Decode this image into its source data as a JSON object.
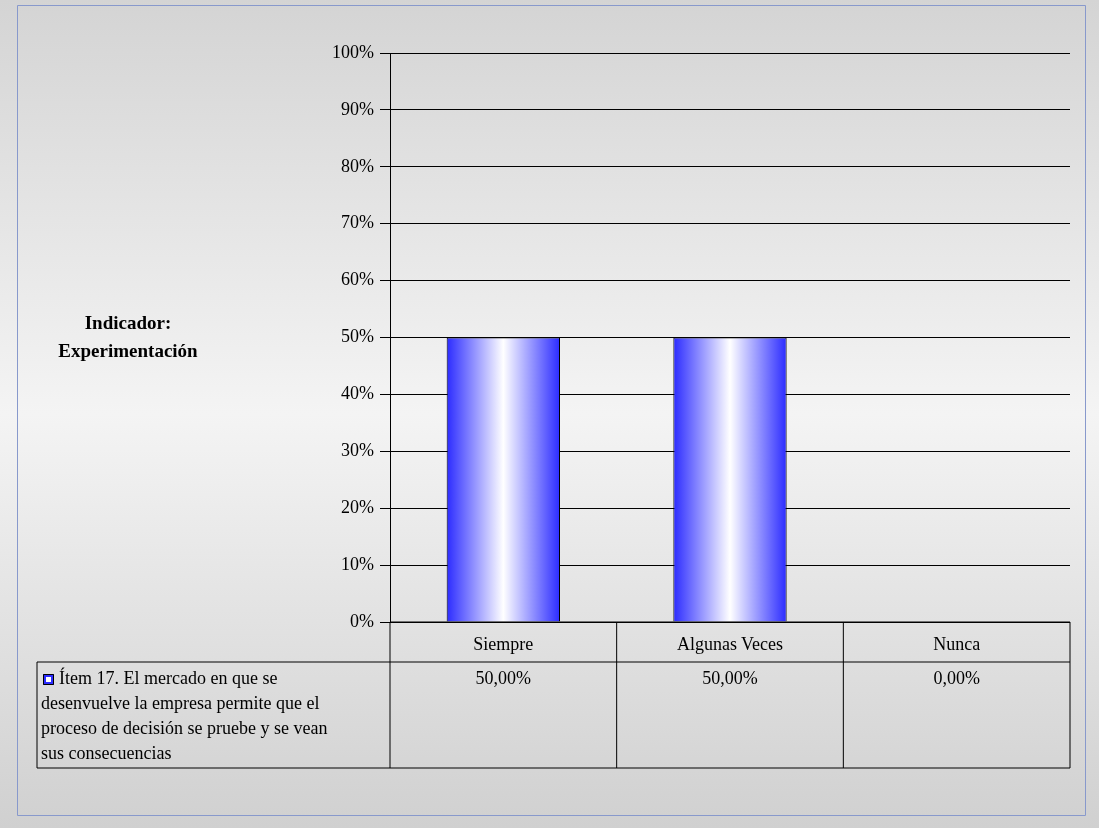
{
  "chart_data": {
    "type": "bar",
    "annotations": [
      "Indicador: Experimentación"
    ],
    "categories": [
      "Siempre",
      "Algunas Veces",
      "Nunca"
    ],
    "series": [
      {
        "name": "Ítem 17. El mercado en que se desenvuelve la empresa permite que el proceso de decisión se pruebe y se vean sus consecuencias",
        "color": "#2b2bff",
        "values": [
          50,
          50,
          0
        ],
        "value_labels": [
          "50,00%",
          "50,00%",
          "0,00%"
        ]
      }
    ],
    "ylim": [
      0,
      100
    ],
    "yticks": [
      {
        "value": 0,
        "label": "0%"
      },
      {
        "value": 10,
        "label": "10%"
      },
      {
        "value": 20,
        "label": "20%"
      },
      {
        "value": 30,
        "label": "30%"
      },
      {
        "value": 40,
        "label": "40%"
      },
      {
        "value": 50,
        "label": "50%"
      },
      {
        "value": 60,
        "label": "60%"
      },
      {
        "value": 70,
        "label": "70%"
      },
      {
        "value": 80,
        "label": "80%"
      },
      {
        "value": 90,
        "label": "90%"
      },
      {
        "value": 100,
        "label": "100%"
      }
    ],
    "grid": "y",
    "legend": "bottom"
  }
}
